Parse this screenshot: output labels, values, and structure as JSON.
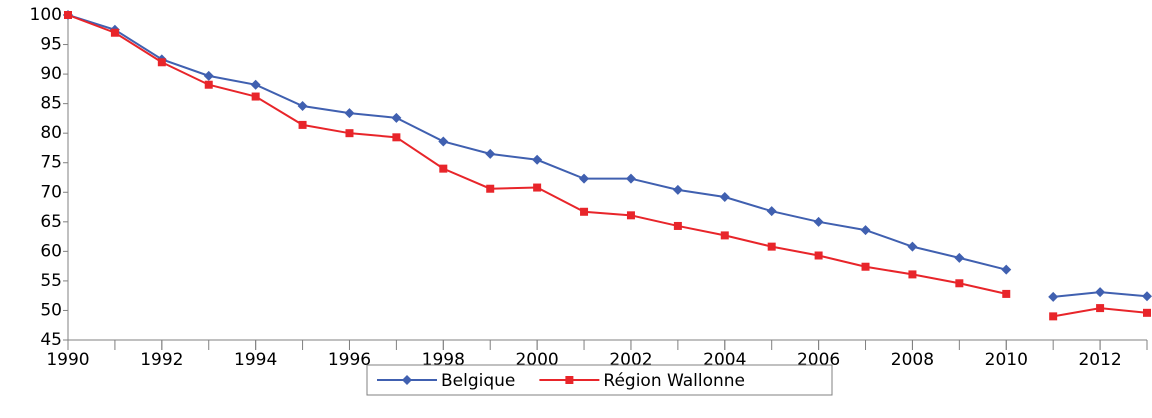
{
  "chart_data": {
    "type": "line",
    "x": [
      1990,
      1991,
      1992,
      1993,
      1994,
      1995,
      1996,
      1997,
      1998,
      1999,
      2000,
      2001,
      2002,
      2003,
      2004,
      2005,
      2006,
      2007,
      2008,
      2009,
      2010,
      null,
      2011,
      2012,
      2013
    ],
    "series": [
      {
        "name": "Belgique",
        "color": "#4060b0",
        "marker": "diamond",
        "values": [
          100,
          97.5,
          92.5,
          89.7,
          88.2,
          84.6,
          83.4,
          82.6,
          78.6,
          76.5,
          75.5,
          72.3,
          72.3,
          70.4,
          69.2,
          66.8,
          65.0,
          63.6,
          60.8,
          58.9,
          56.9,
          null,
          52.3,
          53.1,
          52.4
        ]
      },
      {
        "name": "Région Wallonne",
        "color": "#e8252a",
        "marker": "square",
        "values": [
          100,
          97,
          92,
          88.2,
          86.2,
          81.4,
          80,
          79.3,
          74,
          70.6,
          70.8,
          66.7,
          66.1,
          64.3,
          62.7,
          60.8,
          59.3,
          57.4,
          56.1,
          54.6,
          52.8,
          null,
          49,
          50.4,
          49.6
        ]
      }
    ],
    "xlim": [
      1990,
      2013
    ],
    "xticks": [
      1990,
      1992,
      1994,
      1996,
      1998,
      2000,
      2002,
      2004,
      2006,
      2008,
      2010,
      2012
    ],
    "ylim": [
      45,
      100
    ],
    "yticks": [
      45,
      50,
      55,
      60,
      65,
      70,
      75,
      80,
      85,
      90,
      95,
      100
    ],
    "grid": false,
    "legend": "bottom"
  }
}
